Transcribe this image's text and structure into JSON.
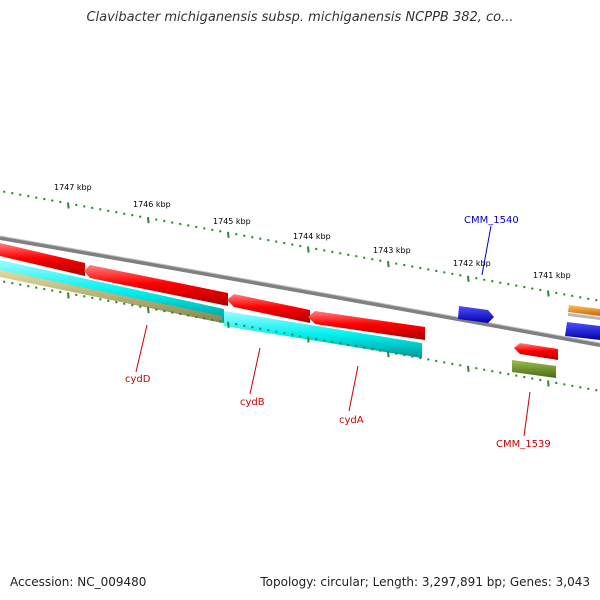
{
  "title": "Clavibacter michiganensis subsp. michiganensis NCPPB 382, co...",
  "footer": {
    "accession": "Accession: NC_009480",
    "summary": "Topology: circular; Length: 3,297,891 bp; Genes: 3,043"
  },
  "colors": {
    "backbone": "#808080",
    "tick": "#2a8a2a",
    "forward_cds": "#ff0000",
    "reverse_cds": "#00eeee",
    "label_red": "#cc0000",
    "label_blue": "#0000cc",
    "blue_feature": "#1010ee",
    "olive_feature": "#6b8e23",
    "tan_feature": "#b8b070",
    "orange_feature": "#ff9900"
  },
  "scale_labels": [
    "1747 kbp",
    "1746 kbp",
    "1745 kbp",
    "1744 kbp",
    "1743 kbp",
    "1742 kbp",
    "1741 kbp"
  ],
  "genes": [
    {
      "id": "cydD",
      "label": "cydD",
      "color": "label_red"
    },
    {
      "id": "cydB",
      "label": "cydB",
      "color": "label_red"
    },
    {
      "id": "cydA",
      "label": "cydA",
      "color": "label_red"
    },
    {
      "id": "CMM_1539",
      "label": "CMM_1539",
      "color": "label_red"
    },
    {
      "id": "CMM_1540",
      "label": "CMM_1540",
      "color": "label_blue"
    }
  ]
}
